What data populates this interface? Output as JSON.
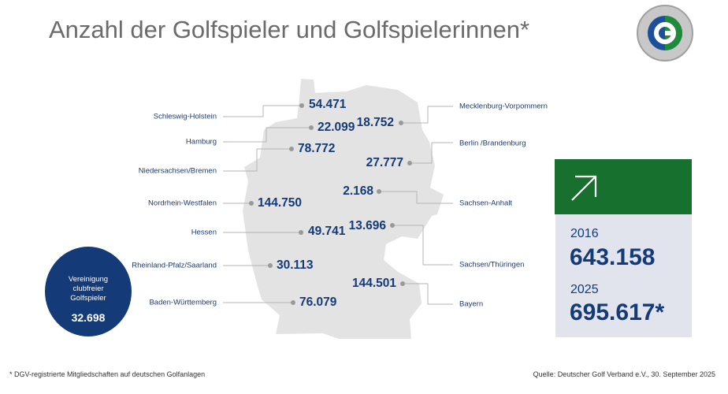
{
  "title": "Anzahl der Golfspieler und Golfspielerinnen*",
  "logo": {
    "text": "DEUTSCHER GOLF VERBAND",
    "letter": "G"
  },
  "regions": [
    {
      "name": "Schleswig-Holstein",
      "value": "54.471"
    },
    {
      "name": "Hamburg",
      "value": "22.099"
    },
    {
      "name": "Niedersachsen/Bremen",
      "value": "78.772"
    },
    {
      "name": "Nordrhein-Westfalen",
      "value": "144.750"
    },
    {
      "name": "Hessen",
      "value": "49.741"
    },
    {
      "name": "Rheinland-Pfalz/Saarland",
      "value": "30.113"
    },
    {
      "name": "Baden-Württemberg",
      "value": "76.079"
    },
    {
      "name": "Mecklenburg-Vorpommern",
      "value": "18.752"
    },
    {
      "name": "Berlin /Brandenburg",
      "value": "27.777"
    },
    {
      "name": "Sachsen-Anhalt",
      "value": "2.168"
    },
    {
      "name": "Sachsen/Thüringen",
      "value": "13.696"
    },
    {
      "name": "Bayern",
      "value": "144.501"
    }
  ],
  "vcg": {
    "line1": "Vereinigung",
    "line2": "clubfreier",
    "line3": "Golfspieler",
    "value": "32.698"
  },
  "totals": {
    "year1": "2016",
    "value1": "643.158",
    "year2": "2025",
    "value2": "695.617*"
  },
  "colors": {
    "navy": "#143a78",
    "green": "#17702e",
    "map": "#e3e3e3"
  },
  "footnote": "* DGV-registrierte Mitgliedschaften auf deutschen Golfanlagen",
  "source": "Quelle: Deutscher Golf Verband e.V., 30. September 2025"
}
